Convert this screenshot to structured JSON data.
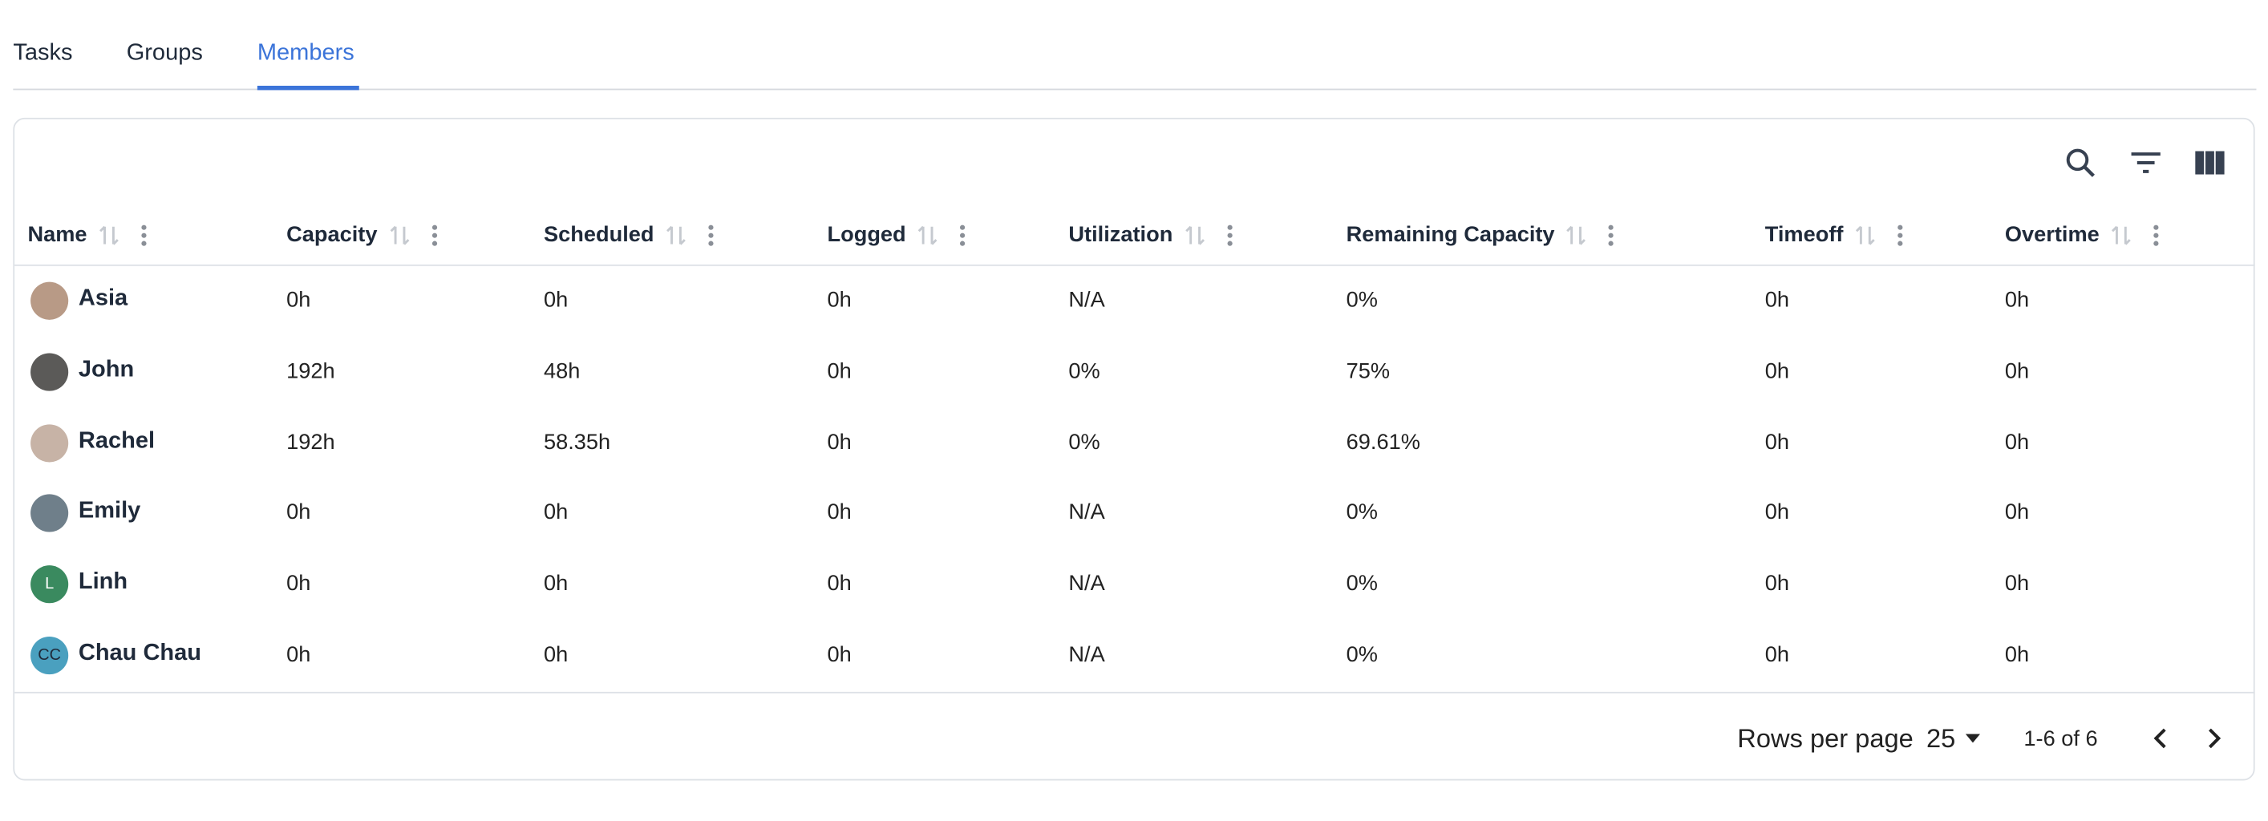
{
  "tabs": [
    "Tasks",
    "Groups",
    "Members"
  ],
  "active_tab": "Members",
  "table": {
    "headers": [
      "Name",
      "Capacity",
      "Scheduled",
      "Logged",
      "Utilization",
      "Remaining Capacity",
      "Timeoff",
      "Overtime"
    ],
    "rows": [
      {
        "name": "Asia",
        "cells": [
          "0h",
          "0h",
          "0h",
          "N/A",
          "0%",
          "0h",
          "0h"
        ]
      },
      {
        "name": "John",
        "cells": [
          "192h",
          "48h",
          "0h",
          "0%",
          "75%",
          "0h",
          "0h"
        ]
      },
      {
        "name": "Rachel",
        "cells": [
          "192h",
          "58.35h",
          "0h",
          "0%",
          "69.61%",
          "0h",
          "0h"
        ]
      },
      {
        "name": "Emily",
        "cells": [
          "0h",
          "0h",
          "0h",
          "N/A",
          "0%",
          "0h",
          "0h"
        ]
      },
      {
        "name": "Linh",
        "initials": "L",
        "cells": [
          "0h",
          "0h",
          "0h",
          "N/A",
          "0%",
          "0h",
          "0h"
        ]
      },
      {
        "name": "Chau Chau",
        "initials": "CC",
        "cells": [
          "0h",
          "0h",
          "0h",
          "N/A",
          "0%",
          "0h",
          "0h"
        ]
      }
    ]
  },
  "footer": {
    "rows_per_page_label": "Rows per page",
    "rows_per_page": "25",
    "range": "1-6 of 6"
  }
}
